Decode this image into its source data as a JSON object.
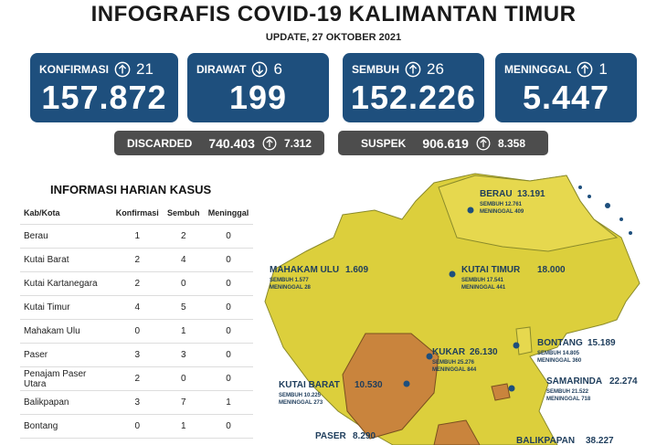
{
  "header": {
    "title": "INFOGRAFIS COVID-19 KALIMANTAN TIMUR",
    "update": "UPDATE, 27 OKTOBER 2021"
  },
  "cards": [
    {
      "label": "KONFIRMASI",
      "change": "21",
      "value": "157.872"
    },
    {
      "label": "DIRAWAT",
      "change": "6",
      "value": "199"
    },
    {
      "label": "SEMBUH",
      "change": "26",
      "value": "152.226"
    },
    {
      "label": "MENINGGAL",
      "change": "1",
      "value": "5.447"
    }
  ],
  "secondary": [
    {
      "label": "DISCARDED",
      "value": "740.403",
      "change": "7.312"
    },
    {
      "label": "SUSPEK",
      "value": "906.619",
      "change": "8.358"
    }
  ],
  "table": {
    "title": "INFORMASI HARIAN KASUS",
    "headers": [
      "Kab/Kota",
      "Konfirmasi",
      "Sembuh",
      "Meninggal"
    ],
    "rows": [
      [
        "Berau",
        1,
        2,
        0
      ],
      [
        "Kutai Barat",
        2,
        4,
        0
      ],
      [
        "Kutai Kartanegara",
        2,
        0,
        0
      ],
      [
        "Kutai Timur",
        4,
        5,
        0
      ],
      [
        "Mahakam Ulu",
        0,
        1,
        0
      ],
      [
        "Paser",
        3,
        3,
        0
      ],
      [
        "Penajam Paser Utara",
        2,
        0,
        0
      ],
      [
        "Balikpapan",
        3,
        7,
        1
      ],
      [
        "Bontang",
        0,
        1,
        0
      ]
    ]
  },
  "map": {
    "regions": [
      {
        "name": "BERAU",
        "total": "13.191",
        "sembuh": "SEMBUH 12.761",
        "meninggal": "MENINGGAL 409"
      },
      {
        "name": "MAHAKAM ULU",
        "total": "1.609",
        "sembuh": "SEMBUH 1.577",
        "meninggal": "MENINGGAL 28"
      },
      {
        "name": "KUTAI TIMUR",
        "total": "18.000",
        "sembuh": "SEMBUH 17.541",
        "meninggal": "MENINGGAL 441"
      },
      {
        "name": "BONTANG",
        "total": "15.189",
        "sembuh": "SEMBUH 14.805",
        "meninggal": "MENINGGAL 360"
      },
      {
        "name": "KUKAR",
        "total": "26.130",
        "sembuh": "SEMBUH 25.276",
        "meninggal": "MENINGGAL 844"
      },
      {
        "name": "SAMARINDA",
        "total": "22.274",
        "sembuh": "SEMBUH 21.522",
        "meninggal": "MENINGGAL 718"
      },
      {
        "name": "KUTAI BARAT",
        "total": "10.530",
        "sembuh": "SEMBUH 10.225",
        "meninggal": "MENINGGAL 273"
      },
      {
        "name": "PASER",
        "total": "8.290"
      },
      {
        "name": "BALIKPAPAN",
        "total": "38.227"
      }
    ]
  }
}
